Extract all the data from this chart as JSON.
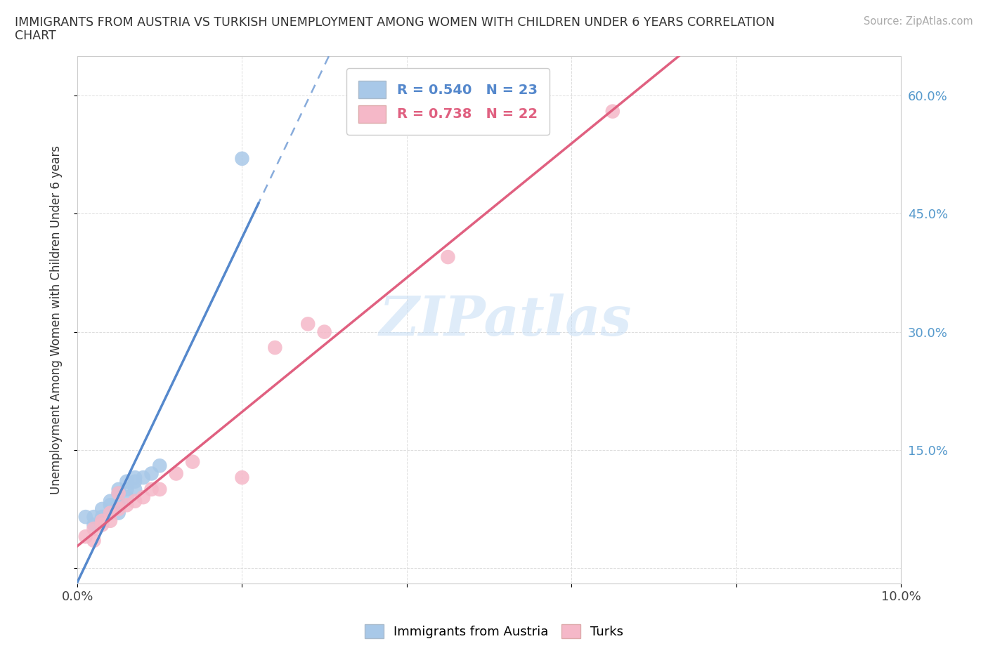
{
  "title_line1": "IMMIGRANTS FROM AUSTRIA VS TURKISH UNEMPLOYMENT AMONG WOMEN WITH CHILDREN UNDER 6 YEARS CORRELATION",
  "title_line2": "CHART",
  "source": "Source: ZipAtlas.com",
  "ylabel": "Unemployment Among Women with Children Under 6 years",
  "xlim": [
    0.0,
    0.1
  ],
  "ylim": [
    -0.02,
    0.65
  ],
  "x_ticks": [
    0.0,
    0.02,
    0.04,
    0.06,
    0.08,
    0.1
  ],
  "x_tick_labels": [
    "0.0%",
    "",
    "",
    "",
    "",
    "10.0%"
  ],
  "y_ticks": [
    0.0,
    0.15,
    0.3,
    0.45,
    0.6
  ],
  "y_right_labels": [
    "",
    "15.0%",
    "30.0%",
    "45.0%",
    "60.0%"
  ],
  "austria_R": 0.54,
  "austria_N": 23,
  "turks_R": 0.738,
  "turks_N": 22,
  "austria_color": "#a8c8e8",
  "turks_color": "#f5b8c8",
  "austria_line_color": "#5588cc",
  "turks_line_color": "#e06080",
  "austria_scatter_x": [
    0.001,
    0.002,
    0.002,
    0.003,
    0.003,
    0.003,
    0.004,
    0.004,
    0.004,
    0.005,
    0.005,
    0.005,
    0.005,
    0.006,
    0.006,
    0.006,
    0.007,
    0.007,
    0.007,
    0.008,
    0.009,
    0.01,
    0.02
  ],
  "austria_scatter_y": [
    0.065,
    0.055,
    0.065,
    0.06,
    0.065,
    0.075,
    0.07,
    0.08,
    0.085,
    0.07,
    0.08,
    0.095,
    0.1,
    0.09,
    0.1,
    0.11,
    0.1,
    0.11,
    0.115,
    0.115,
    0.12,
    0.13,
    0.52
  ],
  "turks_scatter_x": [
    0.001,
    0.002,
    0.002,
    0.003,
    0.003,
    0.004,
    0.004,
    0.005,
    0.005,
    0.006,
    0.007,
    0.008,
    0.009,
    0.01,
    0.012,
    0.014,
    0.02,
    0.024,
    0.028,
    0.03,
    0.045,
    0.065
  ],
  "turks_scatter_y": [
    0.04,
    0.035,
    0.05,
    0.055,
    0.06,
    0.06,
    0.07,
    0.075,
    0.095,
    0.08,
    0.085,
    0.09,
    0.1,
    0.1,
    0.12,
    0.135,
    0.115,
    0.28,
    0.31,
    0.3,
    0.395,
    0.58
  ],
  "watermark": "ZIPatlas",
  "background_color": "#ffffff",
  "grid_color": "#dddddd",
  "right_tick_color": "#5599cc"
}
